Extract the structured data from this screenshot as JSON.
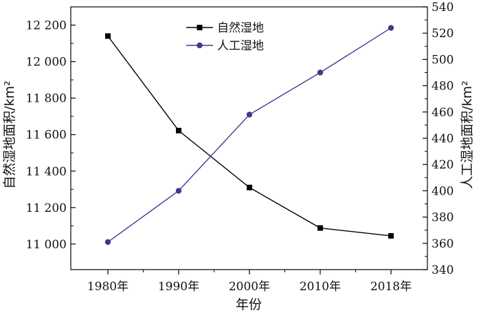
{
  "chart_data": {
    "type": "line",
    "categories": [
      "1980年",
      "1990年",
      "2000年",
      "2010年",
      "2018年"
    ],
    "xlabel": "年份",
    "ylabel_left": "自然湿地面积/km²",
    "ylabel_right": "人工湿地面积/km²",
    "y_left": {
      "range": [
        10860,
        12300
      ],
      "ticks": [
        11000,
        11200,
        11400,
        11600,
        11800,
        12000,
        12200
      ],
      "tick_labels": [
        "11 000",
        "11 200",
        "11 400",
        "11 600",
        "11 800",
        "12 000",
        "12 200"
      ]
    },
    "y_right": {
      "range": [
        340,
        540
      ],
      "ticks": [
        340,
        360,
        380,
        400,
        420,
        440,
        460,
        480,
        500,
        520,
        540
      ],
      "tick_labels": [
        "340",
        "360",
        "380",
        "400",
        "420",
        "440",
        "460",
        "480",
        "500",
        "520",
        "540"
      ]
    },
    "series": [
      {
        "name": "自然湿地",
        "axis": "left",
        "marker": "square",
        "color": "#000000",
        "values": [
          12140,
          11622,
          11310,
          11088,
          11045
        ]
      },
      {
        "name": "人工湿地",
        "axis": "right",
        "marker": "circle",
        "color": "#3b3b8f",
        "values": [
          361,
          400,
          458,
          490,
          524
        ]
      }
    ],
    "grid": false,
    "legend_position": "top-center"
  }
}
